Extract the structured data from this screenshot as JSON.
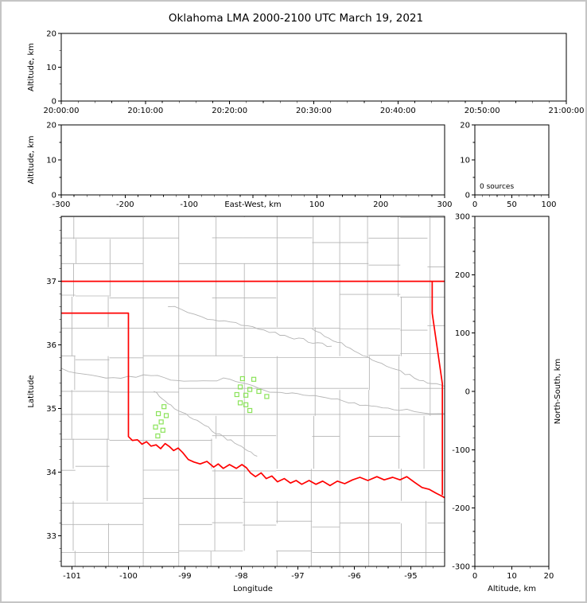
{
  "colors": {
    "axis": "#000000",
    "county_line": "#b4b4b4",
    "state_border": "#ff0000",
    "source_marker": "#8be35a",
    "text": "#000000",
    "figure_border": "#c5c5c5",
    "background": "#ffffff"
  },
  "chart_data": {
    "type": "scatter",
    "title": "Oklahoma LMA 2000-2100 UTC March 19, 2021",
    "description": "Lightning Mapping Array multi-panel plot: time-height, east-west height, source histogram, plan-view map, north-south height",
    "panels": {
      "time_height": {
        "xlabel": "",
        "ylabel": "Altitude, km",
        "xlim": [
          0,
          3600
        ],
        "ylim": [
          0,
          20
        ],
        "xticks": [
          {
            "v": 0,
            "label": "20:00:00"
          },
          {
            "v": 600,
            "label": "20:10:00"
          },
          {
            "v": 1200,
            "label": "20:20:00"
          },
          {
            "v": 1800,
            "label": "20:30:00"
          },
          {
            "v": 2400,
            "label": "20:40:00"
          },
          {
            "v": 3000,
            "label": "20:50:00"
          },
          {
            "v": 3600,
            "label": "21:00:00"
          }
        ],
        "yticks": [
          {
            "v": 0,
            "label": "0"
          },
          {
            "v": 10,
            "label": "10"
          },
          {
            "v": 20,
            "label": "20"
          }
        ],
        "points": []
      },
      "ew_height": {
        "xlabel": "East-West, km",
        "ylabel": "Altitude, km",
        "xlim": [
          -300,
          300
        ],
        "ylim": [
          0,
          20
        ],
        "xticks": [
          {
            "v": -300,
            "label": "-300"
          },
          {
            "v": -200,
            "label": "-200"
          },
          {
            "v": -100,
            "label": "-100"
          },
          {
            "v": 0,
            "label": ""
          },
          {
            "v": 100,
            "label": "100"
          },
          {
            "v": 200,
            "label": "200"
          },
          {
            "v": 300,
            "label": "300"
          }
        ],
        "yticks": [
          {
            "v": 0,
            "label": "0"
          },
          {
            "v": 10,
            "label": "10"
          },
          {
            "v": 20,
            "label": "20"
          }
        ],
        "points": []
      },
      "histogram": {
        "annotation": "0 sources",
        "xlabel": "",
        "ylabel": "",
        "xlim": [
          0,
          100
        ],
        "ylim": [
          0,
          20
        ],
        "xticks": [
          {
            "v": 0,
            "label": "0"
          },
          {
            "v": 50,
            "label": "50"
          },
          {
            "v": 100,
            "label": "100"
          }
        ],
        "yticks": [
          {
            "v": 0,
            "label": "0"
          },
          {
            "v": 10,
            "label": "10"
          },
          {
            "v": 20,
            "label": "20"
          }
        ],
        "points": []
      },
      "map": {
        "xlabel": "Longitude",
        "ylabel": "Latitude",
        "xlim": [
          -101.19,
          -94.4
        ],
        "ylim": [
          32.52,
          38.02
        ],
        "xticks": [
          {
            "v": -101,
            "label": "-101"
          },
          {
            "v": -100,
            "label": "-100"
          },
          {
            "v": -99,
            "label": "-99"
          },
          {
            "v": -98,
            "label": "-98"
          },
          {
            "v": -97,
            "label": "-97"
          },
          {
            "v": -96,
            "label": "-96"
          },
          {
            "v": -95,
            "label": "-95"
          }
        ],
        "yticks": [
          {
            "v": 33,
            "label": "33"
          },
          {
            "v": 34,
            "label": "34"
          },
          {
            "v": 35,
            "label": "35"
          },
          {
            "v": 36,
            "label": "36"
          },
          {
            "v": 37,
            "label": "37"
          }
        ],
        "sources": [
          [
            -97.98,
            35.47
          ],
          [
            -97.78,
            35.46
          ],
          [
            -98.02,
            35.34
          ],
          [
            -97.85,
            35.3
          ],
          [
            -97.69,
            35.27
          ],
          [
            -98.08,
            35.22
          ],
          [
            -97.92,
            35.21
          ],
          [
            -97.55,
            35.19
          ],
          [
            -98.02,
            35.09
          ],
          [
            -97.92,
            35.06
          ],
          [
            -97.85,
            34.97
          ],
          [
            -99.37,
            35.03
          ],
          [
            -99.47,
            34.92
          ],
          [
            -99.33,
            34.89
          ],
          [
            -99.42,
            34.79
          ],
          [
            -99.52,
            34.71
          ],
          [
            -99.39,
            34.66
          ],
          [
            -99.48,
            34.57
          ]
        ],
        "state_border": [
          [
            [
              -101.19,
              37.0
            ],
            [
              -94.4,
              37.0
            ]
          ],
          [
            [
              -94.62,
              37.0
            ],
            [
              -94.62,
              36.5
            ],
            [
              -94.44,
              35.39
            ],
            [
              -94.44,
              33.64
            ]
          ],
          [
            [
              -101.19,
              36.5
            ],
            [
              -100.0,
              36.5
            ],
            [
              -100.0,
              34.56
            ],
            [
              -99.93,
              34.5
            ],
            [
              -99.84,
              34.51
            ],
            [
              -99.76,
              34.44
            ],
            [
              -99.68,
              34.48
            ],
            [
              -99.6,
              34.41
            ],
            [
              -99.51,
              34.43
            ],
            [
              -99.43,
              34.37
            ],
            [
              -99.35,
              34.45
            ],
            [
              -99.27,
              34.4
            ],
            [
              -99.2,
              34.34
            ],
            [
              -99.12,
              34.38
            ],
            [
              -99.04,
              34.31
            ],
            [
              -98.94,
              34.2
            ],
            [
              -98.84,
              34.16
            ],
            [
              -98.73,
              34.13
            ],
            [
              -98.61,
              34.17
            ],
            [
              -98.49,
              34.08
            ],
            [
              -98.41,
              34.13
            ],
            [
              -98.32,
              34.06
            ],
            [
              -98.21,
              34.12
            ],
            [
              -98.09,
              34.06
            ],
            [
              -97.99,
              34.12
            ],
            [
              -97.91,
              34.07
            ],
            [
              -97.84,
              33.99
            ],
            [
              -97.75,
              33.93
            ],
            [
              -97.65,
              33.99
            ],
            [
              -97.56,
              33.9
            ],
            [
              -97.46,
              33.94
            ],
            [
              -97.36,
              33.85
            ],
            [
              -97.24,
              33.9
            ],
            [
              -97.13,
              33.83
            ],
            [
              -97.03,
              33.87
            ],
            [
              -96.93,
              33.81
            ],
            [
              -96.8,
              33.87
            ],
            [
              -96.68,
              33.81
            ],
            [
              -96.56,
              33.86
            ],
            [
              -96.43,
              33.79
            ],
            [
              -96.3,
              33.86
            ],
            [
              -96.17,
              33.82
            ],
            [
              -96.03,
              33.88
            ],
            [
              -95.9,
              33.92
            ],
            [
              -95.76,
              33.87
            ],
            [
              -95.6,
              33.93
            ],
            [
              -95.47,
              33.88
            ],
            [
              -95.32,
              33.92
            ],
            [
              -95.19,
              33.88
            ],
            [
              -95.07,
              33.93
            ],
            [
              -94.93,
              33.84
            ],
            [
              -94.8,
              33.76
            ],
            [
              -94.67,
              33.73
            ],
            [
              -94.55,
              33.67
            ],
            [
              -94.46,
              33.63
            ],
            [
              -94.4,
              33.6
            ]
          ]
        ],
        "gray_features": [
          [
            [
              -101.19,
              35.62
            ],
            [
              -100.4,
              35.48
            ],
            [
              -99.6,
              35.52
            ],
            [
              -98.9,
              35.42
            ],
            [
              -98.2,
              35.47
            ],
            [
              -97.6,
              35.28
            ],
            [
              -97.0,
              35.22
            ],
            [
              -96.4,
              35.15
            ],
            [
              -95.8,
              35.05
            ],
            [
              -95.2,
              34.98
            ],
            [
              -94.4,
              34.92
            ]
          ],
          [
            [
              -99.3,
              36.62
            ],
            [
              -98.6,
              36.42
            ],
            [
              -98.0,
              36.33
            ],
            [
              -97.4,
              36.18
            ],
            [
              -96.9,
              36.08
            ],
            [
              -96.4,
              35.98
            ]
          ],
          [
            [
              -99.55,
              35.28
            ],
            [
              -99.25,
              35.05
            ],
            [
              -98.85,
              34.83
            ],
            [
              -98.45,
              34.62
            ],
            [
              -98.05,
              34.42
            ],
            [
              -97.72,
              34.25
            ]
          ],
          [
            [
              -96.75,
              36.25
            ],
            [
              -96.3,
              36.05
            ],
            [
              -95.85,
              35.85
            ],
            [
              -95.35,
              35.65
            ],
            [
              -94.85,
              35.45
            ],
            [
              -94.4,
              35.35
            ]
          ]
        ]
      },
      "ns_height": {
        "xlabel": "Altitude, km",
        "ylabel": "North-South, km",
        "xlim": [
          0,
          20
        ],
        "ylim": [
          -300,
          300
        ],
        "xticks": [
          {
            "v": 0,
            "label": "0"
          },
          {
            "v": 10,
            "label": "10"
          },
          {
            "v": 20,
            "label": "20"
          }
        ],
        "yticks": [
          {
            "v": 300,
            "label": "300"
          },
          {
            "v": 200,
            "label": "200"
          },
          {
            "v": 100,
            "label": "100"
          },
          {
            "v": 0,
            "label": "0"
          },
          {
            "v": -100,
            "label": "-100"
          },
          {
            "v": -200,
            "label": "-200"
          },
          {
            "v": -300,
            "label": "-300"
          }
        ],
        "points": []
      }
    }
  }
}
